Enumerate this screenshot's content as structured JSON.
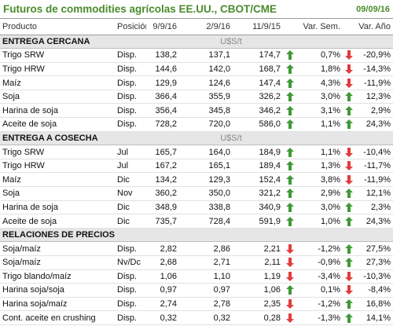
{
  "header": {
    "title": "Futuros de commodities agrícolas EE.UU., CBOT/CME",
    "date": "09/09/16"
  },
  "table": {
    "columns": [
      "Producto",
      "Posición",
      "9/9/16",
      "2/9/16",
      "11/9/15",
      "Var. Sem.",
      "Var. Año"
    ],
    "sections": [
      {
        "name": "ENTREGA CERCANA",
        "unit": "U$S/t",
        "rows": [
          {
            "cells": [
              "Trigo SRW",
              "Disp.",
              "138,2",
              "137,1",
              "174,7",
              "0,7%",
              "-20,9%"
            ],
            "arrows": [
              "up",
              "down"
            ]
          },
          {
            "cells": [
              "Trigo HRW",
              "Disp.",
              "144,6",
              "142,0",
              "168,7",
              "1,8%",
              "-14,3%"
            ],
            "arrows": [
              "up",
              "down"
            ]
          },
          {
            "cells": [
              "Maíz",
              "Disp.",
              "129,9",
              "124,6",
              "147,4",
              "4,3%",
              "-11,9%"
            ],
            "arrows": [
              "up",
              "down"
            ]
          },
          {
            "cells": [
              "Soja",
              "Disp.",
              "366,4",
              "355,9",
              "326,2",
              "3,0%",
              "12,3%"
            ],
            "arrows": [
              "up",
              "up"
            ]
          },
          {
            "cells": [
              "Harina de soja",
              "Disp.",
              "356,4",
              "345,8",
              "346,2",
              "3,1%",
              "2,9%"
            ],
            "arrows": [
              "up",
              "up"
            ]
          },
          {
            "cells": [
              "Aceite de soja",
              "Disp.",
              "728,2",
              "720,0",
              "586,0",
              "1,1%",
              "24,3%"
            ],
            "arrows": [
              "up",
              "up"
            ]
          }
        ]
      },
      {
        "name": "ENTREGA A COSECHA",
        "unit": "U$S/t",
        "rows": [
          {
            "cells": [
              "Trigo SRW",
              "Jul",
              "165,7",
              "164,0",
              "184,9",
              "1,1%",
              "-10,4%"
            ],
            "arrows": [
              "up",
              "down"
            ]
          },
          {
            "cells": [
              "Trigo HRW",
              "Jul",
              "167,2",
              "165,1",
              "189,4",
              "1,3%",
              "-11,7%"
            ],
            "arrows": [
              "up",
              "down"
            ]
          },
          {
            "cells": [
              "Maíz",
              "Dic",
              "134,2",
              "129,3",
              "152,4",
              "3,8%",
              "-11,9%"
            ],
            "arrows": [
              "up",
              "down"
            ]
          },
          {
            "cells": [
              "Soja",
              "Nov",
              "360,2",
              "350,0",
              "321,2",
              "2,9%",
              "12,1%"
            ],
            "arrows": [
              "up",
              "up"
            ]
          },
          {
            "cells": [
              "Harina de soja",
              "Dic",
              "348,9",
              "338,8",
              "340,9",
              "3,0%",
              "2,3%"
            ],
            "arrows": [
              "up",
              "up"
            ]
          },
          {
            "cells": [
              "Aceite de soja",
              "Dic",
              "735,7",
              "728,4",
              "591,9",
              "1,0%",
              "24,3%"
            ],
            "arrows": [
              "up",
              "up"
            ]
          }
        ]
      },
      {
        "name": "RELACIONES DE PRECIOS",
        "rows": [
          {
            "cells": [
              "Soja/maíz",
              "Disp.",
              "2,82",
              "2,86",
              "2,21",
              "-1,2%",
              "27,5%"
            ],
            "arrows": [
              "down",
              "up"
            ]
          },
          {
            "cells": [
              "Soja/maíz",
              "Nv/Dc",
              "2,68",
              "2,71",
              "2,11",
              "-0,9%",
              "27,3%"
            ],
            "arrows": [
              "down",
              "up"
            ]
          },
          {
            "cells": [
              "Trigo blando/maíz",
              "Disp.",
              "1,06",
              "1,10",
              "1,19",
              "-3,4%",
              "-10,3%"
            ],
            "arrows": [
              "down",
              "down"
            ]
          },
          {
            "cells": [
              "Harina soja/soja",
              "Disp.",
              "0,97",
              "0,97",
              "1,06",
              "0,1%",
              "-8,4%"
            ],
            "arrows": [
              "up",
              "down"
            ]
          },
          {
            "cells": [
              "Harina soja/maíz",
              "Disp.",
              "2,74",
              "2,78",
              "2,35",
              "-1,2%",
              "16,8%"
            ],
            "arrows": [
              "down",
              "up"
            ]
          },
          {
            "cells": [
              "Cont. aceite en crushing",
              "Disp.",
              "0,32",
              "0,32",
              "0,28",
              "-1,3%",
              "14,1%"
            ],
            "arrows": [
              "down",
              "up"
            ]
          }
        ]
      }
    ]
  }
}
